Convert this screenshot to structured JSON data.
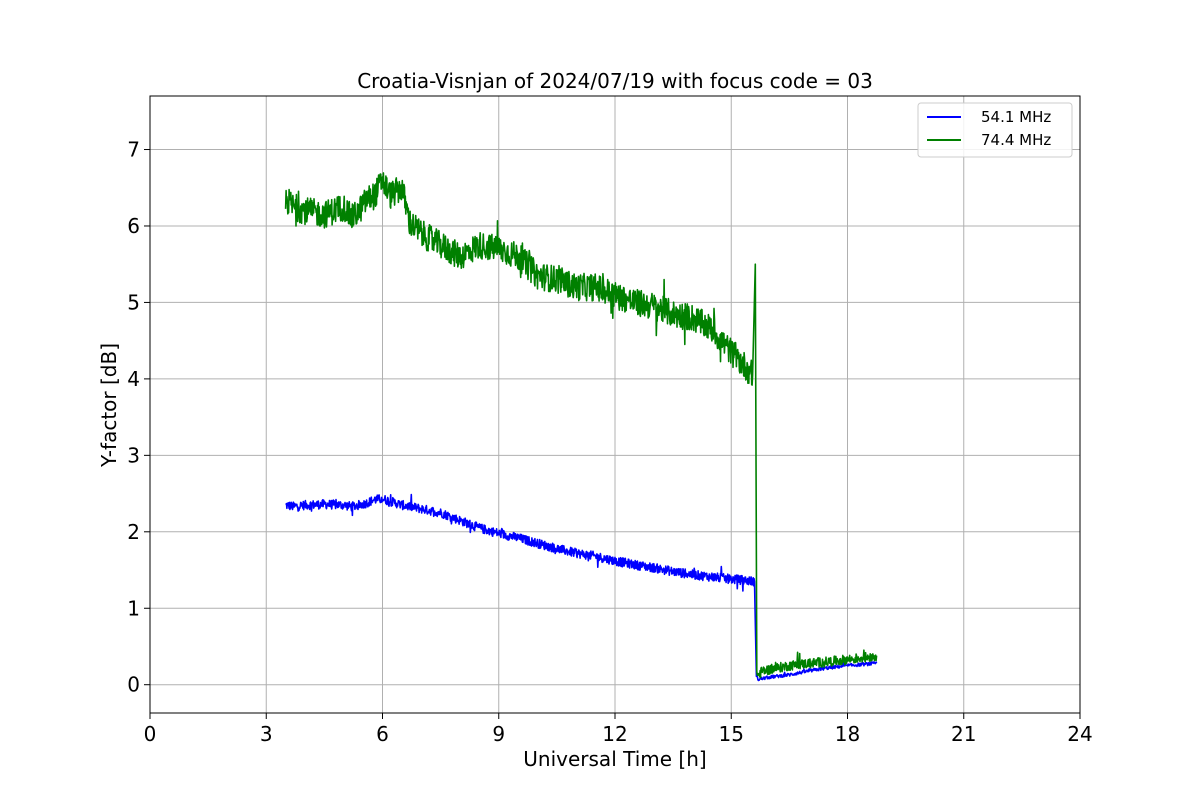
{
  "chart_data": {
    "type": "line",
    "title": "Croatia-Visnjan of 2024/07/19 with focus code = 03",
    "xlabel": "Universal Time [h]",
    "ylabel": "Y-factor [dB]",
    "xlim": [
      0,
      24
    ],
    "ylim": [
      -0.37,
      7.7
    ],
    "xticks": [
      0,
      3,
      6,
      9,
      12,
      15,
      18,
      21,
      24
    ],
    "xtick_labels": [
      "0",
      "3",
      "6",
      "9",
      "12",
      "15",
      "18",
      "21",
      "24"
    ],
    "yticks": [
      0,
      1,
      2,
      3,
      4,
      5,
      6,
      7
    ],
    "ytick_labels": [
      "0",
      "1",
      "2",
      "3",
      "4",
      "5",
      "6",
      "7"
    ],
    "grid": true,
    "legend_position": "top-right",
    "series": [
      {
        "name": "54.1 MHz",
        "color": "#0000ff",
        "noise": 0.06,
        "x": [
          3.5,
          3.7,
          4.0,
          4.5,
          5.0,
          5.2,
          5.4,
          5.5,
          5.8,
          6.0,
          6.2,
          6.5,
          7.0,
          7.5,
          8.0,
          8.5,
          9.0,
          9.5,
          10.0,
          10.5,
          11.0,
          11.5,
          12.0,
          12.5,
          13.0,
          13.5,
          14.0,
          14.5,
          15.0,
          15.3,
          15.6,
          15.65,
          15.7,
          15.8,
          16.0,
          16.5,
          17.0,
          17.5,
          18.0,
          18.5,
          18.75
        ],
        "y": [
          2.35,
          2.33,
          2.35,
          2.36,
          2.35,
          2.33,
          2.35,
          2.36,
          2.42,
          2.43,
          2.4,
          2.35,
          2.3,
          2.25,
          2.15,
          2.05,
          1.98,
          1.92,
          1.85,
          1.78,
          1.72,
          1.68,
          1.62,
          1.57,
          1.53,
          1.48,
          1.44,
          1.41,
          1.38,
          1.37,
          1.35,
          0.1,
          0.07,
          0.08,
          0.1,
          0.13,
          0.18,
          0.22,
          0.25,
          0.27,
          0.28
        ]
      },
      {
        "name": "74.4 MHz",
        "color": "#008000",
        "noise": 0.18,
        "x": [
          3.5,
          3.7,
          4.0,
          4.5,
          5.0,
          5.2,
          5.4,
          5.6,
          5.8,
          6.0,
          6.2,
          6.5,
          6.7,
          7.0,
          7.5,
          8.0,
          8.5,
          9.0,
          9.5,
          10.0,
          10.5,
          11.0,
          11.5,
          12.0,
          12.5,
          13.0,
          13.5,
          14.0,
          14.5,
          15.0,
          15.3,
          15.55,
          15.62,
          15.66,
          15.7,
          15.8,
          16.0,
          16.5,
          17.0,
          17.5,
          18.0,
          18.5,
          18.75
        ],
        "y": [
          6.35,
          6.25,
          6.2,
          6.15,
          6.25,
          6.1,
          6.2,
          6.35,
          6.4,
          6.6,
          6.4,
          6.5,
          6.05,
          5.9,
          5.75,
          5.6,
          5.75,
          5.7,
          5.6,
          5.35,
          5.3,
          5.2,
          5.2,
          5.1,
          5.0,
          4.95,
          4.85,
          4.8,
          4.65,
          4.35,
          4.2,
          4.05,
          5.5,
          0.15,
          0.12,
          0.18,
          0.2,
          0.25,
          0.28,
          0.3,
          0.33,
          0.36,
          0.38
        ]
      }
    ]
  }
}
